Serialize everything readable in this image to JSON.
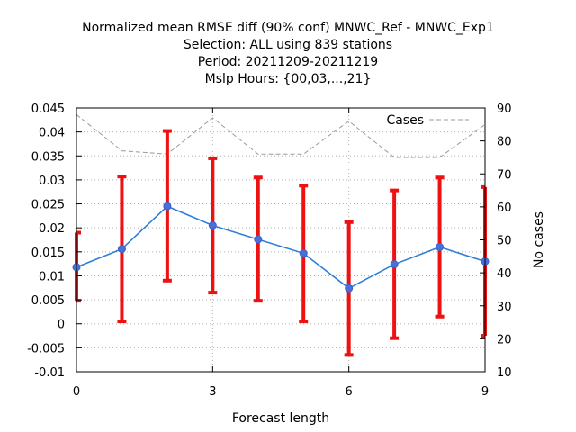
{
  "chart_data": {
    "type": "line",
    "title_lines": [
      "Normalized mean RMSE diff (90% conf) MNWC_Ref - MNWC_Exp1",
      "Selection: ALL using   839 stations",
      "Period: 20211209-20211219",
      "Mslp   Hours: {00,03,...,21}"
    ],
    "xlabel": "Forecast length",
    "ylabel": "",
    "y2label": "No cases",
    "xlim": [
      0,
      9
    ],
    "ylim": [
      -0.01,
      0.045
    ],
    "y2lim": [
      10,
      90
    ],
    "x_ticks": [
      0,
      3,
      6,
      9
    ],
    "x_tick_labels": [
      "0",
      "3",
      "6",
      "9"
    ],
    "y_ticks": [
      -0.01,
      -0.005,
      0,
      0.005,
      0.01,
      0.015,
      0.02,
      0.025,
      0.03,
      0.035,
      0.04,
      0.045
    ],
    "y_tick_labels": [
      "-0.01",
      "-0.005",
      "0",
      "0.005",
      "0.01",
      "0.015",
      "0.02",
      "0.025",
      "0.03",
      "0.035",
      "0.04",
      "0.045"
    ],
    "y2_ticks": [
      10,
      20,
      30,
      40,
      50,
      60,
      70,
      80,
      90
    ],
    "y2_tick_labels": [
      "10",
      "20",
      "30",
      "40",
      "50",
      "60",
      "70",
      "80",
      "90"
    ],
    "grid": true,
    "legend_position": "top-right",
    "series": [
      {
        "x": [
          0,
          1,
          2,
          3,
          4,
          5,
          6,
          7,
          8,
          9
        ],
        "values": [
          0.0118,
          0.0156,
          0.0245,
          0.0205,
          0.0176,
          0.0147,
          0.0074,
          0.0124,
          0.016,
          0.013
        ],
        "error_low": [
          0.0048,
          0.0005,
          0.009,
          0.0065,
          0.0048,
          0.0005,
          -0.0065,
          -0.003,
          0.0015,
          -0.0025
        ],
        "error_high": [
          0.019,
          0.0307,
          0.0402,
          0.0345,
          0.0305,
          0.0288,
          0.0212,
          0.0278,
          0.0305,
          0.0285
        ],
        "color": "#2e7fd9",
        "marker_color": "#4a6fd8",
        "error_color": "#ee1111",
        "axis": "left"
      },
      {
        "name": "Cases",
        "x": [
          0,
          1,
          2,
          3,
          4,
          5,
          6,
          7,
          8,
          9
        ],
        "values": [
          88,
          77,
          76,
          87,
          76,
          76,
          86,
          75,
          75,
          85
        ],
        "color": "#999999",
        "style": "dashed",
        "axis": "right"
      }
    ]
  }
}
